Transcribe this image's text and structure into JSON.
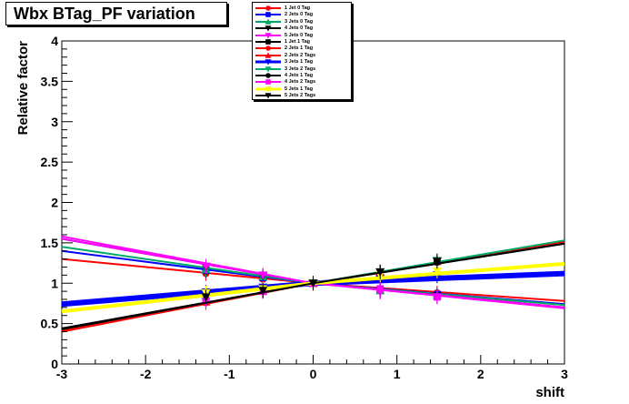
{
  "chart_data": {
    "type": "line",
    "title": "Wbx BTag_PF variation",
    "xlabel": "shift",
    "ylabel": "Relative factor",
    "xlim": [
      -3,
      3
    ],
    "ylim": [
      0,
      4
    ],
    "x_ticks": [
      -3,
      -2,
      -1,
      0,
      1,
      2,
      3
    ],
    "y_ticks": [
      0,
      0.5,
      1,
      1.5,
      2,
      2.5,
      3,
      3.5,
      4
    ],
    "x_tick_labels": [
      "-3",
      "-2",
      "-1",
      "0",
      "1",
      "2",
      "3"
    ],
    "y_tick_labels": [
      "0",
      "0.5",
      "1",
      "1.5",
      "2",
      "2.5",
      "3",
      "3.5",
      "4"
    ],
    "grid": false,
    "legend_position": "top-center",
    "x_points": [
      -1.28,
      -0.6,
      0,
      0.8,
      1.48
    ],
    "series": [
      {
        "name": "1 Jet  0 Tag",
        "color": "#ff0000",
        "marker": "circle",
        "width": 2,
        "y_at_-3": 1.3,
        "y_at_3": 0.78,
        "points": [
          1.12,
          1.05,
          1.0,
          0.93,
          0.88
        ]
      },
      {
        "name": "2 Jets 0 Tag",
        "color": "#0000ff",
        "marker": "square",
        "width": 2,
        "y_at_-3": 1.4,
        "y_at_3": 0.74,
        "points": [
          1.16,
          1.07,
          1.0,
          0.91,
          0.86
        ]
      },
      {
        "name": "3 Jets 0 Tag",
        "color": "#00aa66",
        "marker": "triangle-up",
        "width": 2,
        "y_at_-3": 1.45,
        "y_at_3": 0.73,
        "points": [
          1.17,
          1.08,
          1.0,
          0.91,
          0.85
        ]
      },
      {
        "name": "4 Jets 0 Tag",
        "color": "#000000",
        "marker": "triangle-down",
        "width": 2,
        "y_at_-3": 1.55,
        "y_at_3": 0.7,
        "points": [
          1.2,
          1.09,
          1.0,
          0.9,
          0.84
        ]
      },
      {
        "name": "5 Jets 0 Tag",
        "color": "#ff00ff",
        "marker": "triangle-down",
        "width": 2,
        "y_at_-3": 1.58,
        "y_at_3": 0.69,
        "points": [
          1.21,
          1.1,
          1.0,
          0.89,
          0.83
        ]
      },
      {
        "name": "1 Jet  1 Tag",
        "color": "#000000",
        "marker": "square",
        "width": 2,
        "y_at_-3": 0.74,
        "y_at_3": 1.12,
        "points": [
          0.89,
          0.94,
          1.0,
          1.05,
          1.09
        ]
      },
      {
        "name": "2 Jets 1 Tag",
        "color": "#ff0000",
        "marker": "circle",
        "width": 2,
        "y_at_-3": 0.4,
        "y_at_3": 1.52,
        "points": [
          0.76,
          0.9,
          1.0,
          1.14,
          1.28
        ]
      },
      {
        "name": "2 Jets 2 Tags",
        "color": "#ff0000",
        "marker": "triangle-up",
        "width": 2,
        "y_at_-3": 0.41,
        "y_at_3": 1.51,
        "points": [
          0.77,
          0.9,
          1.0,
          1.14,
          1.27
        ]
      },
      {
        "name": "3 Jets 1 Tag",
        "color": "#0000ff",
        "marker": "triangle-down",
        "width": 6,
        "y_at_-3": 0.74,
        "y_at_3": 1.12,
        "points": [
          0.89,
          0.95,
          1.0,
          1.05,
          1.1
        ]
      },
      {
        "name": "3 Jets 2 Tags",
        "color": "#00aa66",
        "marker": "triangle-down",
        "width": 2,
        "y_at_-3": 0.43,
        "y_at_3": 1.53,
        "points": [
          0.77,
          0.9,
          1.0,
          1.14,
          1.28
        ]
      },
      {
        "name": "4 Jets 1 Tag",
        "color": "#000000",
        "marker": "circle",
        "width": 2,
        "y_at_-3": 0.44,
        "y_at_3": 1.49,
        "points": [
          0.79,
          0.91,
          1.0,
          1.13,
          1.26
        ]
      },
      {
        "name": "4 Jets 2 Tags",
        "color": "#ff00ff",
        "marker": "square",
        "width": 2,
        "y_at_-3": 1.55,
        "y_at_3": 0.7,
        "points": [
          0.79,
          0.9,
          1.0,
          0.93,
          0.83
        ]
      },
      {
        "name": "5 Jets 1 Tag",
        "color": "#ffff00",
        "marker": "triangle-down",
        "width": 4,
        "y_at_-3": 0.65,
        "y_at_3": 1.24,
        "points": [
          0.88,
          0.93,
          1.0,
          1.1,
          1.15
        ]
      },
      {
        "name": "5 Jets 2 Tags",
        "color": "#000000",
        "marker": "triangle-down",
        "width": 2,
        "y_at_-3": 0.43,
        "y_at_3": 1.49,
        "points": [
          0.83,
          0.91,
          1.0,
          1.14,
          1.27
        ]
      }
    ]
  }
}
